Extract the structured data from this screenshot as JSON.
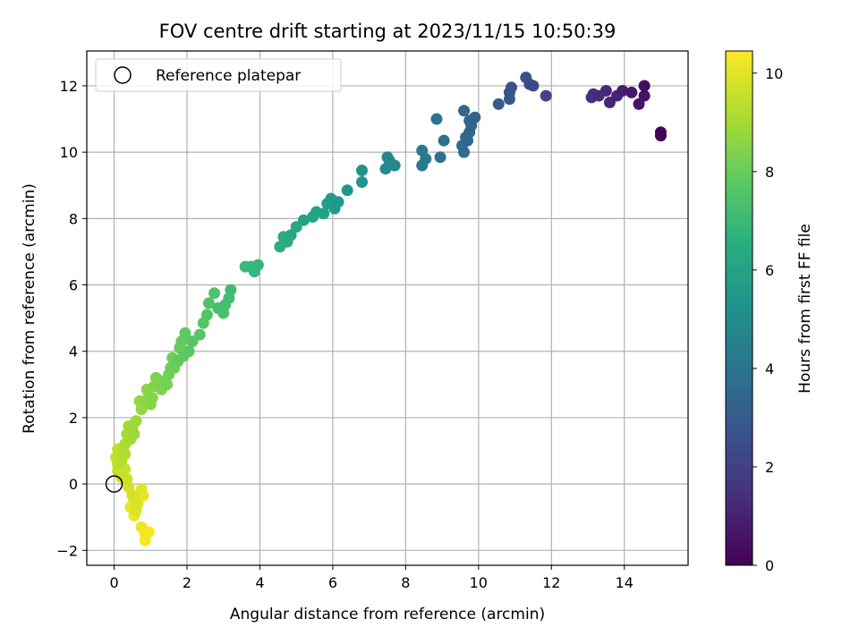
{
  "chart_data": {
    "type": "scatter",
    "title": "FOV centre drift starting at 2023/11/15 10:50:39",
    "xlabel": "Angular distance from reference (arcmin)",
    "ylabel": "Rotation from reference (arcmin)",
    "xlim": [
      -0.75,
      15.75
    ],
    "ylim": [
      -2.45,
      13.05
    ],
    "xticks": [
      0,
      2,
      4,
      6,
      8,
      10,
      12,
      14
    ],
    "yticks": [
      -2,
      0,
      2,
      4,
      6,
      8,
      10,
      12
    ],
    "grid": true,
    "colormap": "viridis",
    "colorbar": {
      "label": "Hours from first FF file",
      "range": [
        0,
        10.45
      ],
      "ticks": [
        0,
        2,
        4,
        6,
        8,
        10
      ]
    },
    "legend": {
      "placement": "upper-left",
      "entries": [
        "Reference platepar"
      ]
    },
    "reference_point": {
      "x": 0,
      "y": 0
    },
    "points": [
      [
        15.0,
        10.5,
        0.05
      ],
      [
        15.0,
        10.6,
        0.1
      ],
      [
        14.55,
        12.0,
        0.4
      ],
      [
        14.55,
        11.7,
        0.5
      ],
      [
        14.4,
        11.45,
        0.6
      ],
      [
        14.2,
        11.8,
        0.7
      ],
      [
        13.95,
        11.85,
        0.85
      ],
      [
        13.8,
        11.7,
        1.0
      ],
      [
        13.6,
        11.5,
        1.1
      ],
      [
        13.5,
        11.85,
        1.2
      ],
      [
        13.3,
        11.7,
        1.3
      ],
      [
        13.15,
        11.75,
        1.4
      ],
      [
        13.1,
        11.65,
        1.5
      ],
      [
        11.85,
        11.7,
        2.1
      ],
      [
        11.5,
        12.0,
        2.3
      ],
      [
        11.4,
        12.05,
        2.4
      ],
      [
        11.3,
        12.25,
        2.5
      ],
      [
        10.9,
        11.95,
        2.7
      ],
      [
        10.85,
        11.8,
        2.8
      ],
      [
        10.85,
        11.6,
        2.9
      ],
      [
        10.55,
        11.45,
        3.0
      ],
      [
        9.9,
        11.05,
        3.3
      ],
      [
        9.8,
        10.8,
        3.35
      ],
      [
        9.75,
        10.6,
        3.4
      ],
      [
        9.7,
        10.35,
        3.45
      ],
      [
        9.6,
        11.25,
        3.5
      ],
      [
        9.65,
        10.45,
        3.55
      ],
      [
        9.6,
        10.0,
        3.6
      ],
      [
        9.55,
        10.2,
        3.65
      ],
      [
        9.75,
        10.95,
        3.5
      ],
      [
        9.05,
        10.35,
        3.8
      ],
      [
        8.95,
        9.85,
        3.9
      ],
      [
        8.85,
        11.0,
        3.95
      ],
      [
        8.55,
        9.8,
        4.2
      ],
      [
        8.45,
        10.05,
        4.25
      ],
      [
        8.45,
        9.6,
        4.3
      ],
      [
        7.7,
        9.6,
        4.8
      ],
      [
        7.55,
        9.75,
        4.9
      ],
      [
        7.5,
        9.85,
        4.95
      ],
      [
        7.45,
        9.5,
        5.0
      ],
      [
        6.8,
        9.45,
        5.3
      ],
      [
        6.8,
        9.1,
        5.35
      ],
      [
        6.4,
        8.85,
        5.5
      ],
      [
        6.15,
        8.5,
        5.6
      ],
      [
        6.05,
        8.3,
        5.7
      ],
      [
        5.95,
        8.6,
        5.75
      ],
      [
        5.85,
        8.45,
        5.8
      ],
      [
        5.75,
        8.15,
        5.9
      ],
      [
        5.55,
        8.2,
        6.0
      ],
      [
        5.45,
        8.05,
        6.05
      ],
      [
        5.2,
        7.95,
        6.1
      ],
      [
        5.0,
        7.75,
        6.2
      ],
      [
        4.85,
        7.5,
        6.3
      ],
      [
        4.75,
        7.3,
        6.4
      ],
      [
        4.65,
        7.45,
        6.45
      ],
      [
        4.55,
        7.15,
        6.5
      ],
      [
        3.95,
        6.6,
        6.9
      ],
      [
        3.75,
        6.55,
        6.95
      ],
      [
        3.85,
        6.4,
        7.0
      ],
      [
        3.6,
        6.55,
        7.05
      ],
      [
        3.2,
        5.85,
        7.2
      ],
      [
        3.15,
        5.6,
        7.25
      ],
      [
        3.05,
        5.4,
        7.3
      ],
      [
        3.0,
        5.15,
        7.35
      ],
      [
        2.85,
        5.3,
        7.4
      ],
      [
        2.75,
        5.75,
        7.45
      ],
      [
        2.6,
        5.45,
        7.5
      ],
      [
        2.55,
        5.1,
        7.55
      ],
      [
        2.45,
        4.85,
        7.6
      ],
      [
        2.35,
        4.5,
        7.65
      ],
      [
        2.15,
        4.3,
        7.7
      ],
      [
        2.05,
        4.0,
        7.75
      ],
      [
        1.95,
        4.55,
        7.8
      ],
      [
        1.9,
        3.85,
        7.85
      ],
      [
        1.85,
        4.3,
        7.9
      ],
      [
        1.75,
        3.7,
        7.95
      ],
      [
        1.8,
        4.1,
        8.0
      ],
      [
        1.65,
        3.5,
        8.05
      ],
      [
        1.6,
        3.8,
        8.1
      ],
      [
        1.55,
        3.5,
        8.15
      ],
      [
        1.5,
        3.3,
        8.2
      ],
      [
        1.45,
        3.0,
        8.25
      ],
      [
        1.35,
        3.1,
        8.3
      ],
      [
        1.3,
        2.85,
        8.35
      ],
      [
        1.15,
        3.2,
        8.4
      ],
      [
        1.1,
        2.95,
        8.45
      ],
      [
        1.05,
        2.6,
        8.5
      ],
      [
        1.0,
        2.4,
        8.55
      ],
      [
        0.95,
        2.65,
        8.6
      ],
      [
        0.9,
        2.85,
        8.65
      ],
      [
        0.85,
        2.5,
        8.7
      ],
      [
        0.75,
        2.25,
        8.75
      ],
      [
        0.7,
        2.5,
        8.8
      ],
      [
        0.6,
        1.9,
        8.85
      ],
      [
        0.55,
        1.5,
        8.9
      ],
      [
        0.5,
        1.7,
        8.95
      ],
      [
        0.45,
        1.35,
        9.0
      ],
      [
        0.4,
        1.75,
        9.05
      ],
      [
        0.35,
        1.5,
        9.1
      ],
      [
        0.3,
        1.2,
        9.15
      ],
      [
        0.3,
        0.9,
        9.2
      ],
      [
        0.25,
        1.1,
        9.25
      ],
      [
        0.2,
        0.7,
        9.3
      ],
      [
        0.15,
        0.95,
        9.35
      ],
      [
        0.1,
        0.6,
        9.4
      ],
      [
        0.1,
        1.05,
        9.45
      ],
      [
        0.05,
        0.8,
        9.5
      ],
      [
        0.1,
        0.4,
        9.55
      ],
      [
        0.2,
        0.2,
        9.6
      ],
      [
        0.3,
        0.45,
        9.65
      ],
      [
        0.35,
        0.15,
        9.7
      ],
      [
        0.4,
        -0.1,
        9.75
      ],
      [
        0.5,
        -0.35,
        9.8
      ],
      [
        0.55,
        -0.55,
        9.85
      ],
      [
        0.6,
        -0.8,
        9.9
      ],
      [
        0.65,
        -0.6,
        9.95
      ],
      [
        0.7,
        -0.3,
        10.0
      ],
      [
        0.75,
        -0.15,
        10.05
      ],
      [
        0.8,
        -0.35,
        10.1
      ],
      [
        0.45,
        -0.7,
        10.15
      ],
      [
        0.55,
        -0.95,
        10.2
      ],
      [
        0.75,
        -1.3,
        10.25
      ],
      [
        0.85,
        -1.5,
        10.3
      ],
      [
        0.95,
        -1.45,
        10.35
      ],
      [
        0.85,
        -1.7,
        10.4
      ]
    ]
  }
}
